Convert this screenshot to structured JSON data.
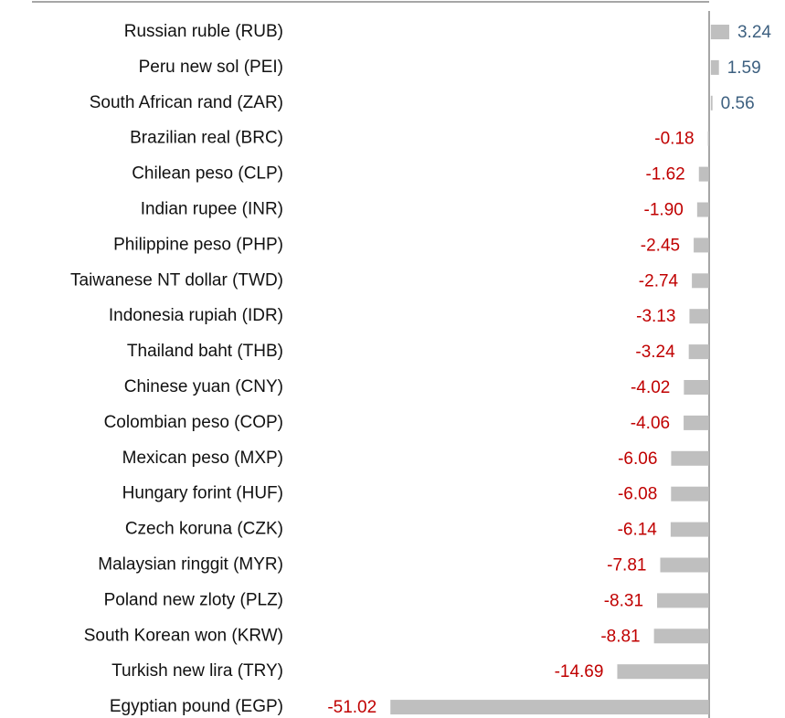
{
  "chart_data": {
    "type": "bar",
    "orientation": "horizontal",
    "categories": [
      "Russian ruble (RUB)",
      "Peru new sol (PEI)",
      "South African rand (ZAR)",
      "Brazilian real (BRC)",
      "Chilean peso (CLP)",
      "Indian rupee (INR)",
      "Philippine peso (PHP)",
      "Taiwanese NT dollar (TWD)",
      "Indonesia rupiah (IDR)",
      "Thailand baht (THB)",
      "Chinese yuan (CNY)",
      "Colombian peso (COP)",
      "Mexican peso (MXP)",
      "Hungary forint (HUF)",
      "Czech koruna (CZK)",
      "Malaysian ringgit (MYR)",
      "Poland new zloty (PLZ)",
      "South Korean won (KRW)",
      "Turkish new lira (TRY)",
      "Egyptian pound (EGP)"
    ],
    "values": [
      3.24,
      1.59,
      0.56,
      -0.18,
      -1.62,
      -1.9,
      -2.45,
      -2.74,
      -3.13,
      -3.24,
      -4.02,
      -4.06,
      -6.06,
      -6.08,
      -6.14,
      -7.81,
      -8.31,
      -8.81,
      -14.69,
      -51.02
    ],
    "value_labels": [
      "3.24",
      "1.59",
      "0.56",
      "-0.18",
      "-1.62",
      "-1.90",
      "-2.45",
      "-2.74",
      "-3.13",
      "-3.24",
      "-4.02",
      "-4.06",
      "-6.06",
      "-6.08",
      "-6.14",
      "-7.81",
      "-8.31",
      "-8.81",
      "-14.69",
      "-51.02"
    ],
    "color": "#bfbfbf",
    "positive_label_color": "#3d6080",
    "negative_label_color": "#c00000",
    "xlim": [
      -55,
      5
    ]
  }
}
